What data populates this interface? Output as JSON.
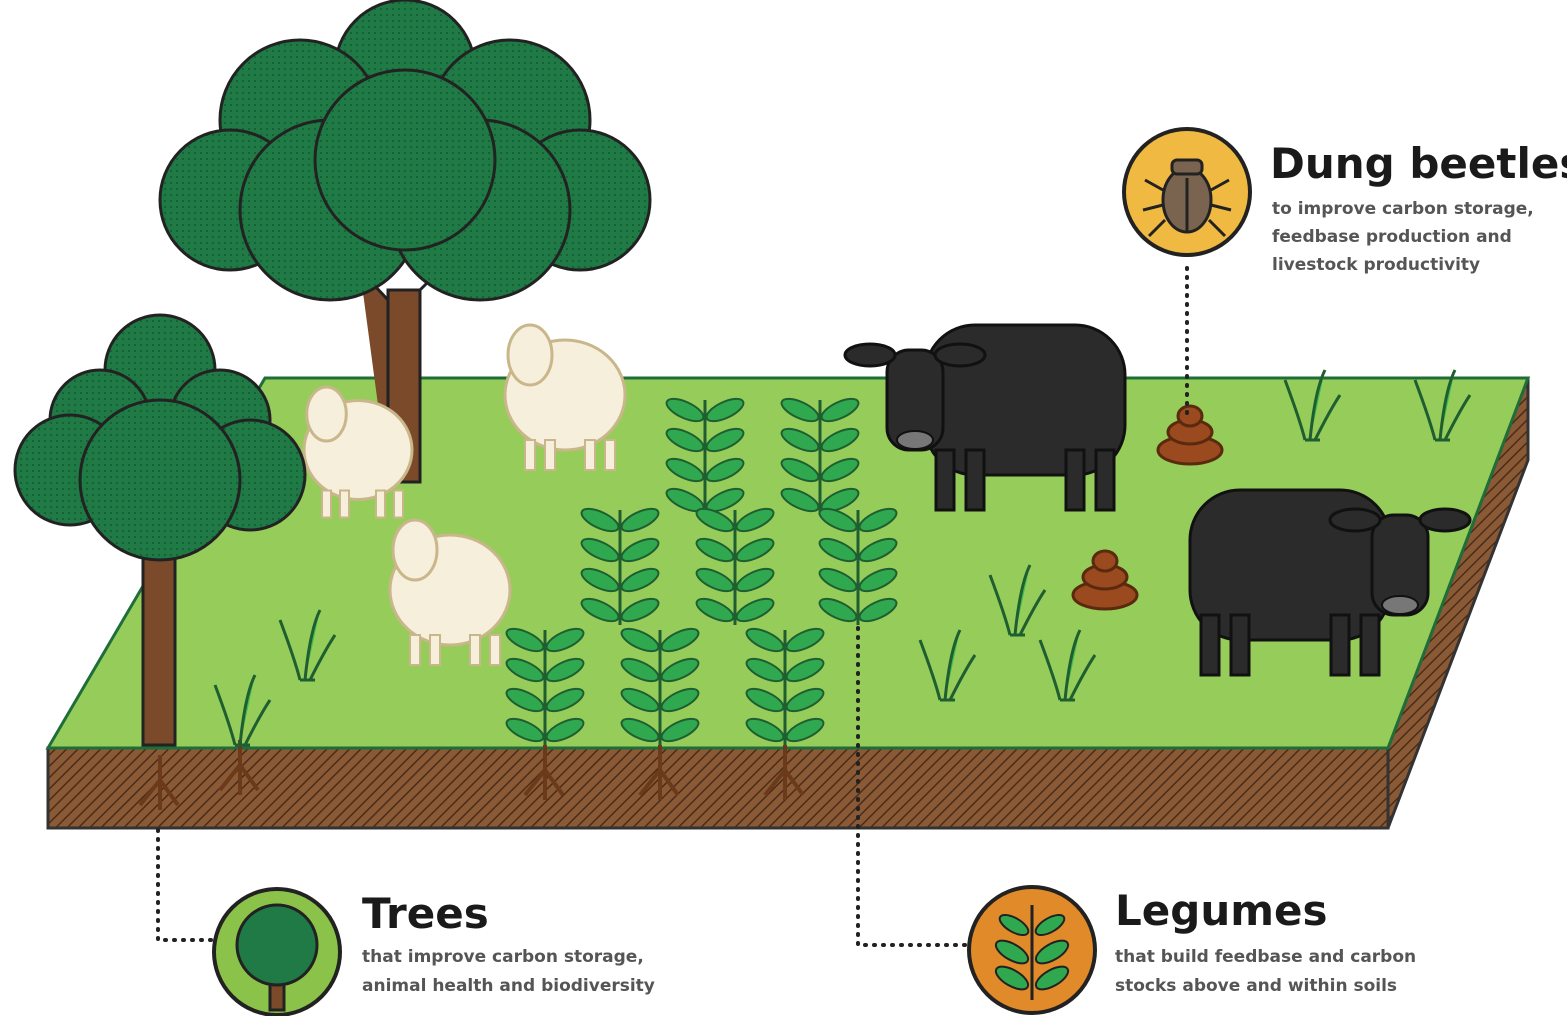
{
  "callouts": [
    {
      "title": "Dung beetles",
      "description": [
        "to improve carbon storage,",
        "feedbase production and",
        "livestock productivity"
      ]
    },
    {
      "title": "Trees",
      "description": [
        "that improve carbon storage,",
        "animal health and biodiversity"
      ]
    },
    {
      "title": "Legumes",
      "description": [
        "that build feedbase and carbon",
        "stocks above and within soils"
      ]
    }
  ]
}
